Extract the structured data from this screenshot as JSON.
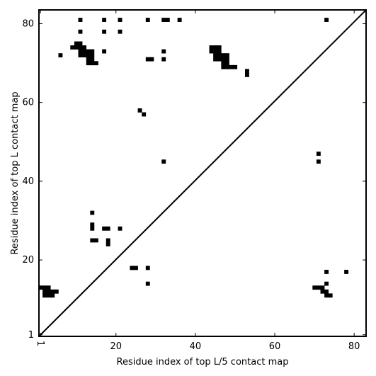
{
  "chart_data": {
    "type": "scatter",
    "title": "",
    "xlabel": "Residue index of top L/5 contact map",
    "ylabel": "Residue index of top L contact map",
    "xlim": [
      0.6,
      83
    ],
    "ylim": [
      0.6,
      83.5
    ],
    "xticks": [
      1,
      20,
      40,
      60,
      80
    ],
    "yticks": [
      1,
      20,
      40,
      60,
      80
    ],
    "xtick_labels": [
      "1",
      "20",
      "40",
      "60",
      "80"
    ],
    "ytick_labels": [
      "1",
      "20",
      "40",
      "60",
      "80"
    ],
    "xtick_label_rotation": {
      "1": -90
    },
    "grid": false,
    "marker": "square",
    "marker_color": "#000000",
    "diagonal_line": true,
    "series": [
      {
        "points_upper": [
          [
            11,
            81
          ],
          [
            17,
            81
          ],
          [
            21,
            81
          ],
          [
            28,
            81
          ],
          [
            32,
            81
          ],
          [
            33,
            81
          ],
          [
            36,
            81
          ],
          [
            73,
            81
          ],
          [
            11,
            78
          ],
          [
            17,
            78
          ],
          [
            21,
            78
          ],
          [
            6,
            72
          ],
          [
            9,
            74
          ],
          [
            10,
            75
          ],
          [
            11,
            75
          ],
          [
            10,
            74
          ],
          [
            11,
            74
          ],
          [
            12,
            74
          ],
          [
            11,
            73
          ],
          [
            12,
            73
          ],
          [
            13,
            73
          ],
          [
            14,
            73
          ],
          [
            11,
            72
          ],
          [
            12,
            72
          ],
          [
            13,
            72
          ],
          [
            14,
            72
          ],
          [
            13,
            71
          ],
          [
            14,
            71
          ],
          [
            13,
            70
          ],
          [
            14,
            70
          ],
          [
            15,
            70
          ],
          [
            17,
            73
          ],
          [
            28,
            71
          ],
          [
            29,
            71
          ],
          [
            32,
            73
          ],
          [
            32,
            71
          ],
          [
            44,
            74
          ],
          [
            45,
            74
          ],
          [
            46,
            74
          ],
          [
            44,
            73
          ],
          [
            45,
            73
          ],
          [
            46,
            73
          ],
          [
            45,
            72
          ],
          [
            46,
            72
          ],
          [
            47,
            72
          ],
          [
            48,
            72
          ],
          [
            45,
            71
          ],
          [
            46,
            71
          ],
          [
            47,
            71
          ],
          [
            48,
            71
          ],
          [
            47,
            70
          ],
          [
            48,
            70
          ],
          [
            47,
            69
          ],
          [
            48,
            69
          ],
          [
            49,
            69
          ],
          [
            50,
            69
          ],
          [
            53,
            68
          ],
          [
            53,
            67
          ],
          [
            26,
            58
          ],
          [
            27,
            57
          ],
          [
            32,
            45
          ],
          [
            71,
            47
          ],
          [
            71,
            45
          ]
        ],
        "points_lower": [
          [
            14,
            32
          ],
          [
            14,
            29
          ],
          [
            14,
            28
          ],
          [
            17,
            28
          ],
          [
            18,
            28
          ],
          [
            21,
            28
          ],
          [
            14,
            25
          ],
          [
            15,
            25
          ],
          [
            18,
            25
          ],
          [
            18,
            24
          ],
          [
            24,
            18
          ],
          [
            25,
            18
          ],
          [
            28,
            18
          ],
          [
            28,
            14
          ],
          [
            1,
            13
          ],
          [
            2,
            13
          ],
          [
            3,
            13
          ],
          [
            2,
            12
          ],
          [
            3,
            12
          ],
          [
            4,
            12
          ],
          [
            5,
            12
          ],
          [
            2,
            11
          ],
          [
            3,
            11
          ],
          [
            4,
            11
          ],
          [
            70,
            13
          ],
          [
            71,
            13
          ],
          [
            72,
            13
          ],
          [
            72,
            12
          ],
          [
            73,
            12
          ],
          [
            73,
            11
          ],
          [
            74,
            11
          ],
          [
            73,
            17
          ],
          [
            73,
            14
          ],
          [
            78,
            17
          ]
        ]
      }
    ]
  }
}
